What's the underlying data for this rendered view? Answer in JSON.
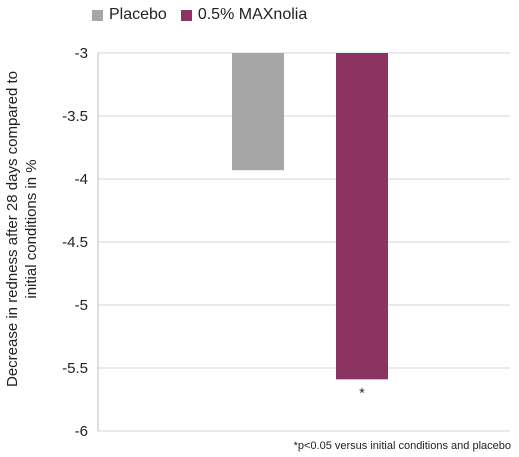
{
  "chart_data": {
    "type": "bar",
    "series": [
      {
        "name": "Placebo",
        "value": -3.93,
        "color": "#a6a6a6"
      },
      {
        "name": "0.5% MAXnolia",
        "value": -5.59,
        "color": "#8c3461",
        "annotation": "*"
      }
    ],
    "ylabel_lines": [
      "Decrease in redness after 28 days compared to",
      "initial conditions in %"
    ],
    "ylim": [
      -6,
      -3
    ],
    "yticks": [
      "-3",
      "-3.5",
      "-4",
      "-4.5",
      "-5",
      "-5.5",
      "-6"
    ],
    "ytick_values": [
      -3,
      -3.5,
      -4,
      -4.5,
      -5,
      -5.5,
      -6
    ],
    "grid": true,
    "legend_position": "top-left",
    "footnote": "*p<0.05 versus initial conditions and placebo"
  }
}
